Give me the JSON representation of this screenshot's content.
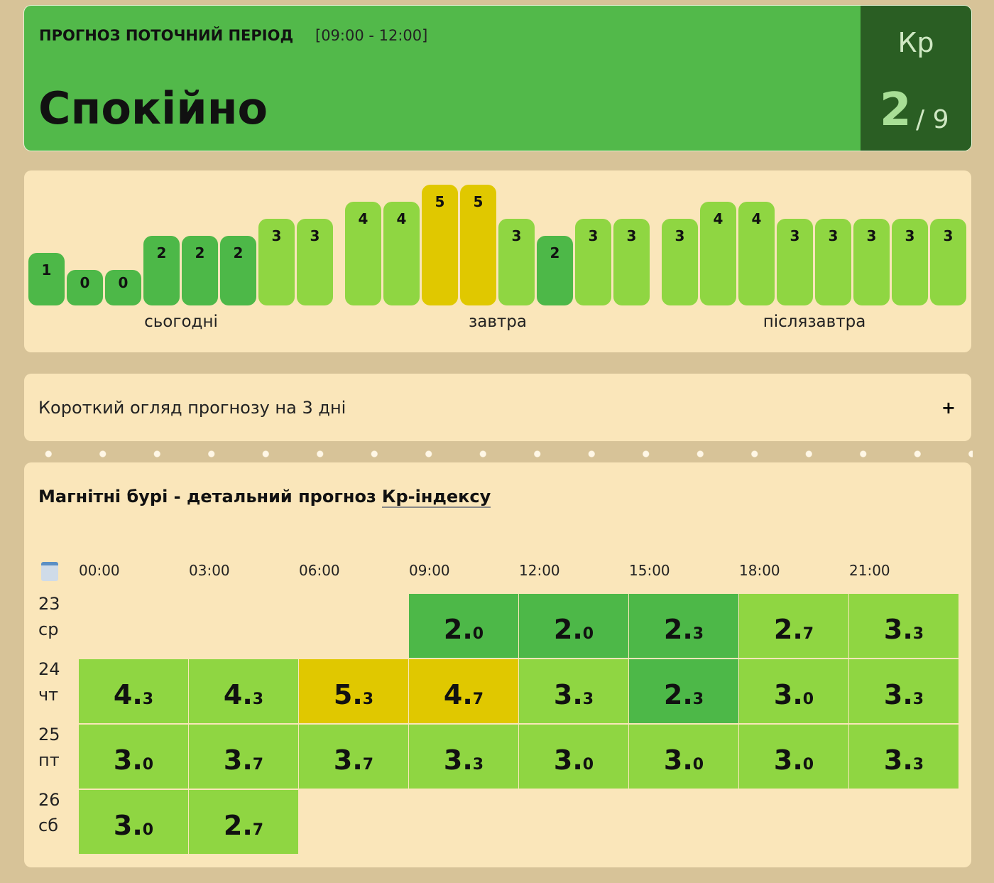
{
  "header": {
    "title": "ПРОГНОЗ ПОТОЧНИЙ ПЕРІОД",
    "period": "[09:00 - 12:00]",
    "status": "Спокійно",
    "kp_label": "Кр",
    "kp_value": 2,
    "kp_scale": "/ 9"
  },
  "forecast_bars": {
    "days": [
      {
        "label": "сьогодні",
        "values": [
          1,
          0,
          0,
          2,
          2,
          2,
          3,
          3
        ]
      },
      {
        "label": "завтра",
        "values": [
          4,
          4,
          5,
          5,
          3,
          2,
          3,
          3
        ]
      },
      {
        "label": "післязавтра",
        "values": [
          3,
          4,
          4,
          3,
          3,
          3,
          3,
          3
        ]
      }
    ]
  },
  "level_colors": [
    "#4db848",
    "#4db848",
    "#4db848",
    "#8fd642",
    "#8fd642",
    "#e0c800",
    "#e0c800",
    "#e0c800",
    "#e0c800",
    "#e0c800"
  ],
  "summary": {
    "title": "Короткий огляд прогнозу на 3 дні",
    "toggle": "+"
  },
  "detail": {
    "title": "Магнітні бурі - детальний прогноз",
    "link": "Кр-індексу",
    "hours": [
      "00:00",
      "03:00",
      "06:00",
      "09:00",
      "12:00",
      "15:00",
      "18:00",
      "21:00"
    ],
    "rows": [
      {
        "day": "23",
        "weekday": "ср",
        "values": [
          null,
          null,
          null,
          "2.0",
          "2.0",
          "2.3",
          "2.7",
          "3.3"
        ]
      },
      {
        "day": "24",
        "weekday": "чт",
        "values": [
          "4.3",
          "4.3",
          "5.3",
          "4.7",
          "3.3",
          "2.3",
          "3.0",
          "3.3"
        ]
      },
      {
        "day": "25",
        "weekday": "пт",
        "values": [
          "3.0",
          "3.7",
          "3.7",
          "3.3",
          "3.0",
          "3.0",
          "3.0",
          "3.3"
        ]
      },
      {
        "day": "26",
        "weekday": "сб",
        "values": [
          "3.0",
          "2.7",
          null,
          null,
          null,
          null,
          null,
          null
        ]
      }
    ]
  }
}
